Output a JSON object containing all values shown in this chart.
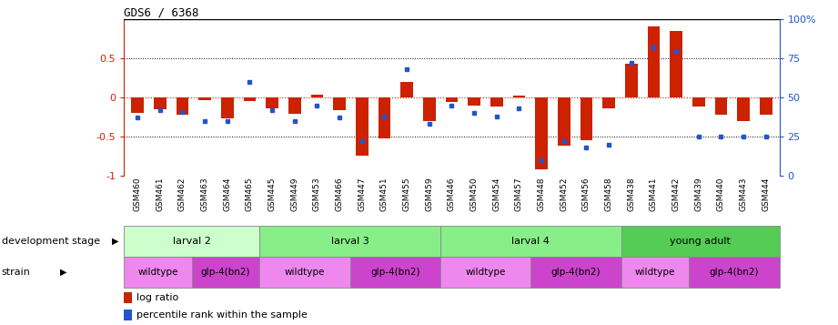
{
  "title": "GDS6 / 6368",
  "samples": [
    "GSM460",
    "GSM461",
    "GSM462",
    "GSM463",
    "GSM464",
    "GSM465",
    "GSM445",
    "GSM449",
    "GSM453",
    "GSM466",
    "GSM447",
    "GSM451",
    "GSM455",
    "GSM459",
    "GSM446",
    "GSM450",
    "GSM454",
    "GSM457",
    "GSM448",
    "GSM452",
    "GSM456",
    "GSM458",
    "GSM438",
    "GSM441",
    "GSM442",
    "GSM439",
    "GSM440",
    "GSM443",
    "GSM444"
  ],
  "log_ratio": [
    -0.2,
    -0.15,
    -0.22,
    -0.03,
    -0.27,
    -0.04,
    -0.14,
    -0.21,
    0.04,
    -0.16,
    -0.75,
    -0.52,
    0.2,
    -0.3,
    -0.06,
    -0.1,
    -0.12,
    0.03,
    -0.92,
    -0.62,
    -0.55,
    -0.14,
    0.43,
    0.91,
    0.85,
    -0.12,
    -0.22,
    -0.3,
    -0.22
  ],
  "percentile": [
    37,
    42,
    41,
    35,
    35,
    60,
    42,
    35,
    45,
    37,
    22,
    38,
    68,
    33,
    45,
    40,
    38,
    43,
    10,
    22,
    18,
    20,
    72,
    82,
    80,
    25,
    25,
    25,
    25
  ],
  "bar_color": "#cc2200",
  "dot_color": "#2255cc",
  "dev_stages": [
    {
      "label": "larval 2",
      "start": 0,
      "end": 6,
      "color": "#ccffcc"
    },
    {
      "label": "larval 3",
      "start": 6,
      "end": 14,
      "color": "#88ee88"
    },
    {
      "label": "larval 4",
      "start": 14,
      "end": 22,
      "color": "#88ee88"
    },
    {
      "label": "young adult",
      "start": 22,
      "end": 29,
      "color": "#55cc55"
    }
  ],
  "strains": [
    {
      "label": "wildtype",
      "start": 0,
      "end": 3,
      "color": "#ee88ee"
    },
    {
      "label": "glp-4(bn2)",
      "start": 3,
      "end": 6,
      "color": "#cc44cc"
    },
    {
      "label": "wildtype",
      "start": 6,
      "end": 10,
      "color": "#ee88ee"
    },
    {
      "label": "glp-4(bn2)",
      "start": 10,
      "end": 14,
      "color": "#cc44cc"
    },
    {
      "label": "wildtype",
      "start": 14,
      "end": 18,
      "color": "#ee88ee"
    },
    {
      "label": "glp-4(bn2)",
      "start": 18,
      "end": 22,
      "color": "#cc44cc"
    },
    {
      "label": "wildtype",
      "start": 22,
      "end": 25,
      "color": "#ee88ee"
    },
    {
      "label": "glp-4(bn2)",
      "start": 25,
      "end": 29,
      "color": "#cc44cc"
    }
  ],
  "dev_stage_row_label": "development stage",
  "strain_row_label": "strain",
  "legend_log_ratio": "log ratio",
  "legend_percentile": "percentile rank within the sample"
}
